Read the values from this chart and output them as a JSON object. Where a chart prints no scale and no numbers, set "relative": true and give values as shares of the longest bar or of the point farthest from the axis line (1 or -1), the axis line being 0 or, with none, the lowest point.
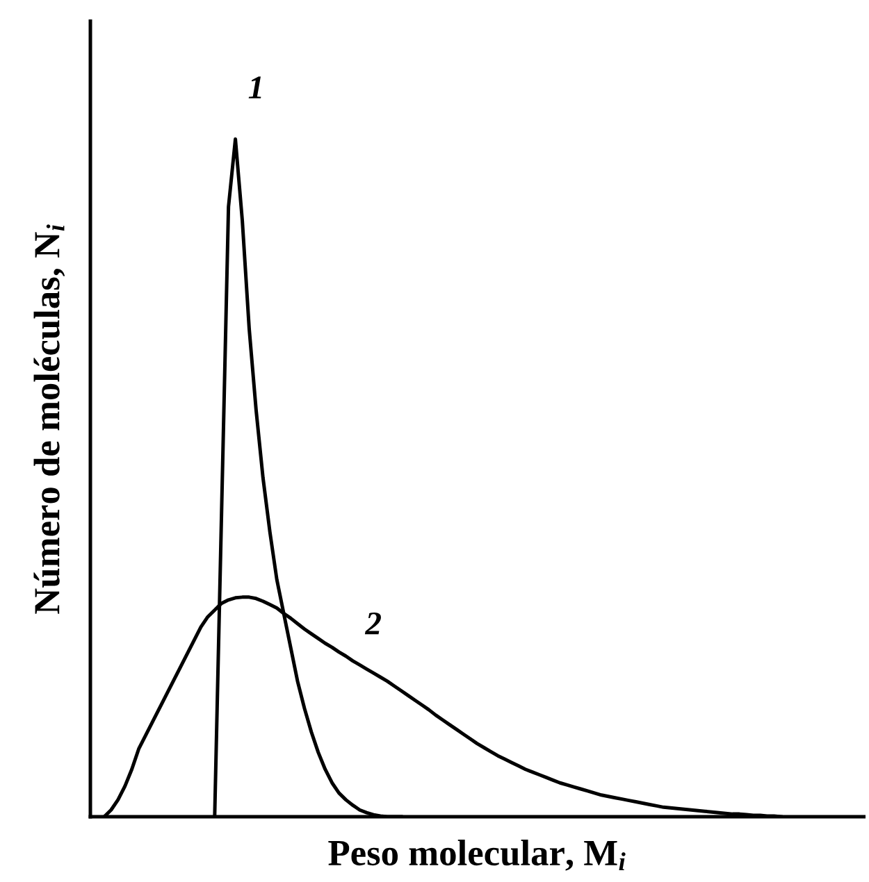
{
  "chart_data": {
    "type": "line",
    "relative": true,
    "xlabel": "Peso molecular, M$_{i}$",
    "ylabel": "Número de moléculas, N$_{i}$",
    "marker": "none",
    "line_style": "solid",
    "categories": [
      null,
      null,
      null,
      null,
      null,
      null,
      null,
      null,
      null,
      null,
      null,
      null,
      null,
      null,
      null,
      null,
      null,
      null,
      null,
      null,
      null,
      null,
      null,
      null,
      null,
      null,
      null,
      null,
      null,
      null,
      null,
      null,
      null,
      null,
      null,
      null,
      null,
      null,
      null,
      null,
      null,
      null,
      null,
      null,
      null,
      null,
      null,
      null,
      null,
      null,
      null,
      null,
      null,
      null,
      null,
      null,
      null,
      null,
      null,
      null,
      null,
      null,
      null,
      null,
      null,
      null,
      null,
      null,
      null,
      null,
      null,
      null,
      null,
      null,
      null,
      null,
      null,
      null,
      null,
      null,
      null,
      null,
      null,
      null,
      null,
      null,
      null,
      null,
      null,
      null,
      null,
      null,
      null,
      null,
      null,
      null,
      null,
      null,
      null,
      null,
      null,
      null,
      null,
      null,
      null,
      null,
      null,
      null,
      null,
      null,
      null
    ],
    "series": [
      {
        "name": "1",
        "color": "#000000",
        "values": [
          null,
          null,
          null,
          null,
          null,
          null,
          null,
          null,
          null,
          null,
          null,
          null,
          null,
          null,
          null,
          null,
          null,
          0,
          0.45,
          0.9,
          1.0,
          0.88,
          0.72,
          0.6,
          0.5,
          0.42,
          0.35,
          0.3,
          0.25,
          0.2,
          0.16,
          0.125,
          0.095,
          0.07,
          0.05,
          0.035,
          0.025,
          0.017,
          0.01,
          0.006,
          0.003,
          0.001,
          0,
          0,
          0,
          null,
          null,
          null,
          null,
          null,
          null,
          null,
          null,
          null,
          null,
          null,
          null,
          null,
          null,
          null,
          null,
          null,
          null,
          null,
          null,
          null,
          null,
          null,
          null,
          null,
          null,
          null,
          null,
          null,
          null,
          null,
          null,
          null,
          null,
          null,
          null,
          null,
          null,
          null,
          null,
          null,
          null,
          null,
          null,
          null,
          null,
          null,
          null,
          null,
          null,
          null,
          null,
          null,
          null,
          null,
          null,
          null,
          null,
          null,
          null,
          null,
          null,
          null,
          null,
          null,
          null
        ]
      },
      {
        "name": "2",
        "color": "#000000",
        "values": [
          null,
          0,
          0.01,
          0.025,
          0.045,
          0.07,
          0.1,
          0.12,
          0.14,
          0.16,
          0.18,
          0.2,
          0.22,
          0.24,
          0.26,
          0.28,
          0.295,
          0.305,
          0.315,
          0.32,
          0.323,
          0.324,
          0.324,
          0.322,
          0.318,
          0.313,
          0.308,
          0.3,
          0.293,
          0.285,
          0.277,
          0.27,
          0.263,
          0.256,
          0.25,
          0.243,
          0.237,
          0.23,
          0.224,
          0.218,
          0.212,
          0.206,
          0.2,
          0.193,
          0.186,
          0.179,
          0.172,
          0.165,
          0.158,
          0.15,
          0.143,
          0.136,
          0.129,
          0.122,
          0.115,
          0.108,
          0.102,
          0.096,
          0.09,
          0.085,
          0.08,
          0.075,
          0.07,
          0.066,
          0.062,
          0.058,
          0.054,
          0.05,
          0.047,
          0.044,
          0.041,
          0.038,
          0.035,
          0.032,
          0.03,
          0.028,
          0.026,
          0.024,
          0.022,
          0.02,
          0.018,
          0.016,
          0.014,
          0.013,
          0.012,
          0.011,
          0.01,
          0.009,
          0.008,
          0.007,
          0.006,
          0.005,
          0.004,
          0.004,
          0.003,
          0.002,
          0.002,
          0.001,
          0.001,
          0,
          null,
          null,
          null,
          null,
          null,
          null,
          null,
          null,
          null,
          null,
          null
        ]
      }
    ]
  }
}
